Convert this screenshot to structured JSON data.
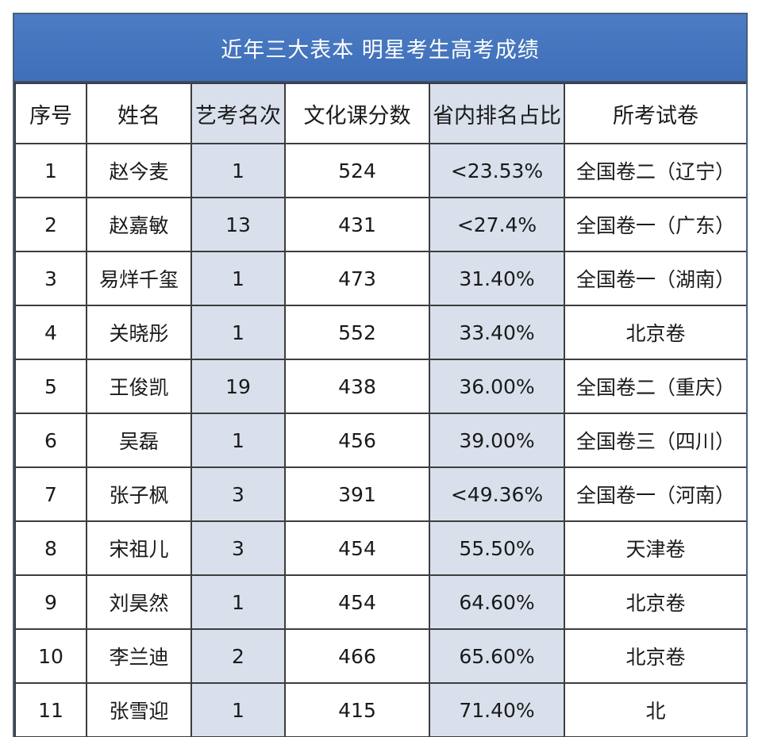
{
  "title": "近年三大表本 明星考生高考成绩",
  "columns": [
    "序号",
    "姓名",
    "艺考名次",
    "文化课分数",
    "省内排名占比",
    "所考试卷"
  ],
  "rows": [
    [
      "1",
      "赵今麦",
      "1",
      "524",
      "<23.53%",
      "全国卷二（辽宁）"
    ],
    [
      "2",
      "赵嘉敏",
      "13",
      "431",
      "<27.4%",
      "全国卷一（广东）"
    ],
    [
      "3",
      "易烊千玺",
      "1",
      "473",
      "31.40%",
      "全国卷一（湖南）"
    ],
    [
      "4",
      "关晓彤",
      "1",
      "552",
      "33.40%",
      "北京卷"
    ],
    [
      "5",
      "王俊凯",
      "19",
      "438",
      "36.00%",
      "全国卷二（重庆）"
    ],
    [
      "6",
      "吴磊",
      "1",
      "456",
      "39.00%",
      "全国卷三（四川）"
    ],
    [
      "7",
      "张子枫",
      "3",
      "391",
      "<49.36%",
      "全国卷一（河南）"
    ],
    [
      "8",
      "宋祖儿",
      "3",
      "454",
      "55.50%",
      "天津卷"
    ],
    [
      "9",
      "刘昊然",
      "1",
      "454",
      "64.60%",
      "北京卷"
    ],
    [
      "10",
      "李兰迪",
      "2",
      "466",
      "65.60%",
      "北京卷"
    ],
    [
      "11",
      "张雪迎",
      "1",
      "415",
      "71.40%",
      "北"
    ]
  ]
}
